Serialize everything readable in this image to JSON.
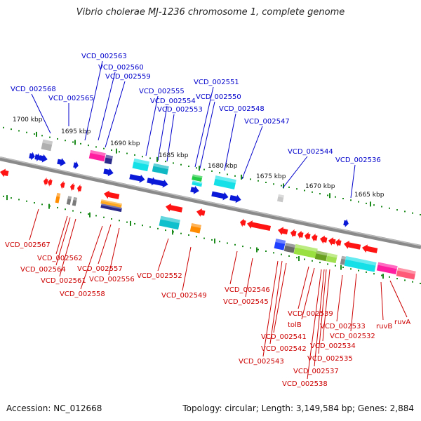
{
  "title": "Vibrio cholerae MJ-1236 chromosome 1, complete genome",
  "accession_text": "Accession: NC_012668",
  "summary_text": "Topology: circular; Length: 3,149,584 bp; Genes: 2,884",
  "colors": {
    "backbone": "#8a8a8a",
    "forward_label": "#0000cc",
    "reverse_label": "#cc0000",
    "tick_green": "#1a8a1a"
  },
  "kbp_labels": [
    "1700 kbp",
    "1695 kbp",
    "1690 kbp",
    "1685 kbp",
    "1680 kbp",
    "1675 kbp",
    "1670 kbp",
    "1665 kbp"
  ],
  "top_labels": [
    {
      "text": "VCD_002568"
    },
    {
      "text": "VCD_002565"
    },
    {
      "text": "VCD_002563"
    },
    {
      "text": "VCD_002560"
    },
    {
      "text": "VCD_002559"
    },
    {
      "text": "VCD_002555"
    },
    {
      "text": "VCD_002554"
    },
    {
      "text": "VCD_002553"
    },
    {
      "text": "VCD_002551"
    },
    {
      "text": "VCD_002550"
    },
    {
      "text": "VCD_002548"
    },
    {
      "text": "VCD_002547"
    },
    {
      "text": "VCD_002544"
    },
    {
      "text": "VCD_002536"
    }
  ],
  "bottom_labels": [
    {
      "text": "VCD_002567"
    },
    {
      "text": "VCD_002562"
    },
    {
      "text": "VCD_002564"
    },
    {
      "text": "VCD_002561"
    },
    {
      "text": "VCD_002557"
    },
    {
      "text": "VCD_002556"
    },
    {
      "text": "VCD_002558"
    },
    {
      "text": "VCD_002552"
    },
    {
      "text": "VCD_002549"
    },
    {
      "text": "VCD_002546"
    },
    {
      "text": "VCD_002545"
    },
    {
      "text": "VCD_002539"
    },
    {
      "text": "tolB"
    },
    {
      "text": "VCD_002541"
    },
    {
      "text": "VCD_002542"
    },
    {
      "text": "VCD_002543"
    },
    {
      "text": "VCD_002533"
    },
    {
      "text": "VCD_002532"
    },
    {
      "text": "VCD_002534"
    },
    {
      "text": "VCD_002535"
    },
    {
      "text": "VCD_002537"
    },
    {
      "text": "VCD_002538"
    },
    {
      "text": "ruvB"
    },
    {
      "text": "ruvA"
    }
  ]
}
